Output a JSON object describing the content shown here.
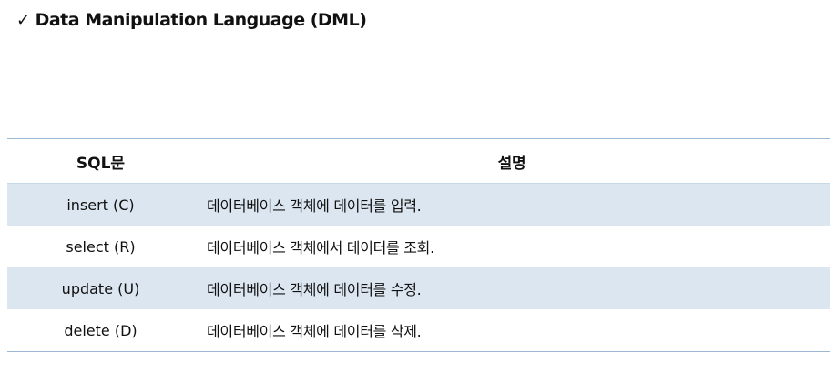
{
  "heading": {
    "check": "✓",
    "title": "Data Manipulation Language (DML)"
  },
  "table": {
    "headers": {
      "col1": "SQL문",
      "col2": "설명"
    },
    "rows": [
      {
        "command": "insert (C)",
        "description": "데이터베이스 객체에 데이터를 입력."
      },
      {
        "command": "select (R)",
        "description": "데이터베이스 객체에서 데이터를 조회."
      },
      {
        "command": "update (U)",
        "description": "데이터베이스 객체에 데이터를 수정."
      },
      {
        "command": "delete (D)",
        "description": "데이터베이스 객체에 데이터를 삭제."
      }
    ]
  }
}
